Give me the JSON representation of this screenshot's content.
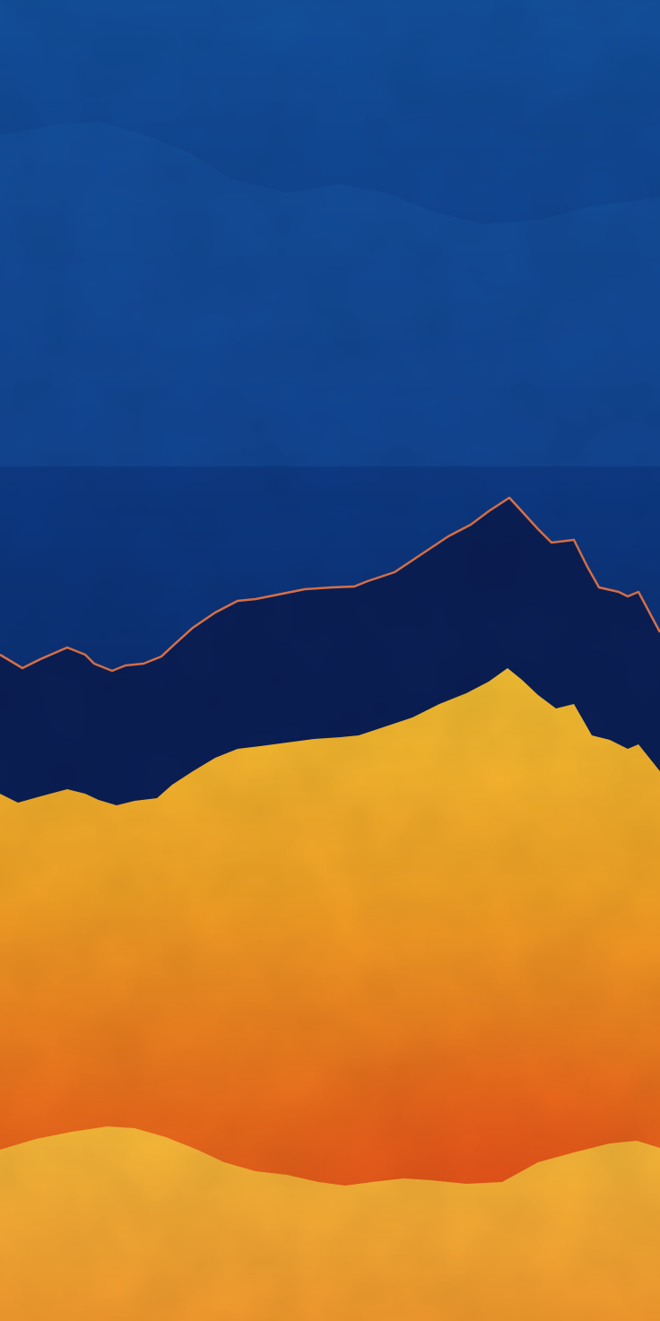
{
  "scene": {
    "description_id": "mountain-wallpaper",
    "palette": {
      "sky_top": "#13509c",
      "sky_mid": "#0e3b86",
      "sky_bottom": "#0a2a6a",
      "sky_haze": "#1a5aa6",
      "dark_ridge": "#0b1f55",
      "outline": "#e0744a",
      "gold_top": "#f4c033",
      "gold_mid": "#f1a126",
      "orange_low": "#ea6a1c",
      "red_orange": "#df4a18",
      "front_ridge_top": "#f6b93a",
      "front_ridge_bottom": "#f29a2e"
    }
  }
}
